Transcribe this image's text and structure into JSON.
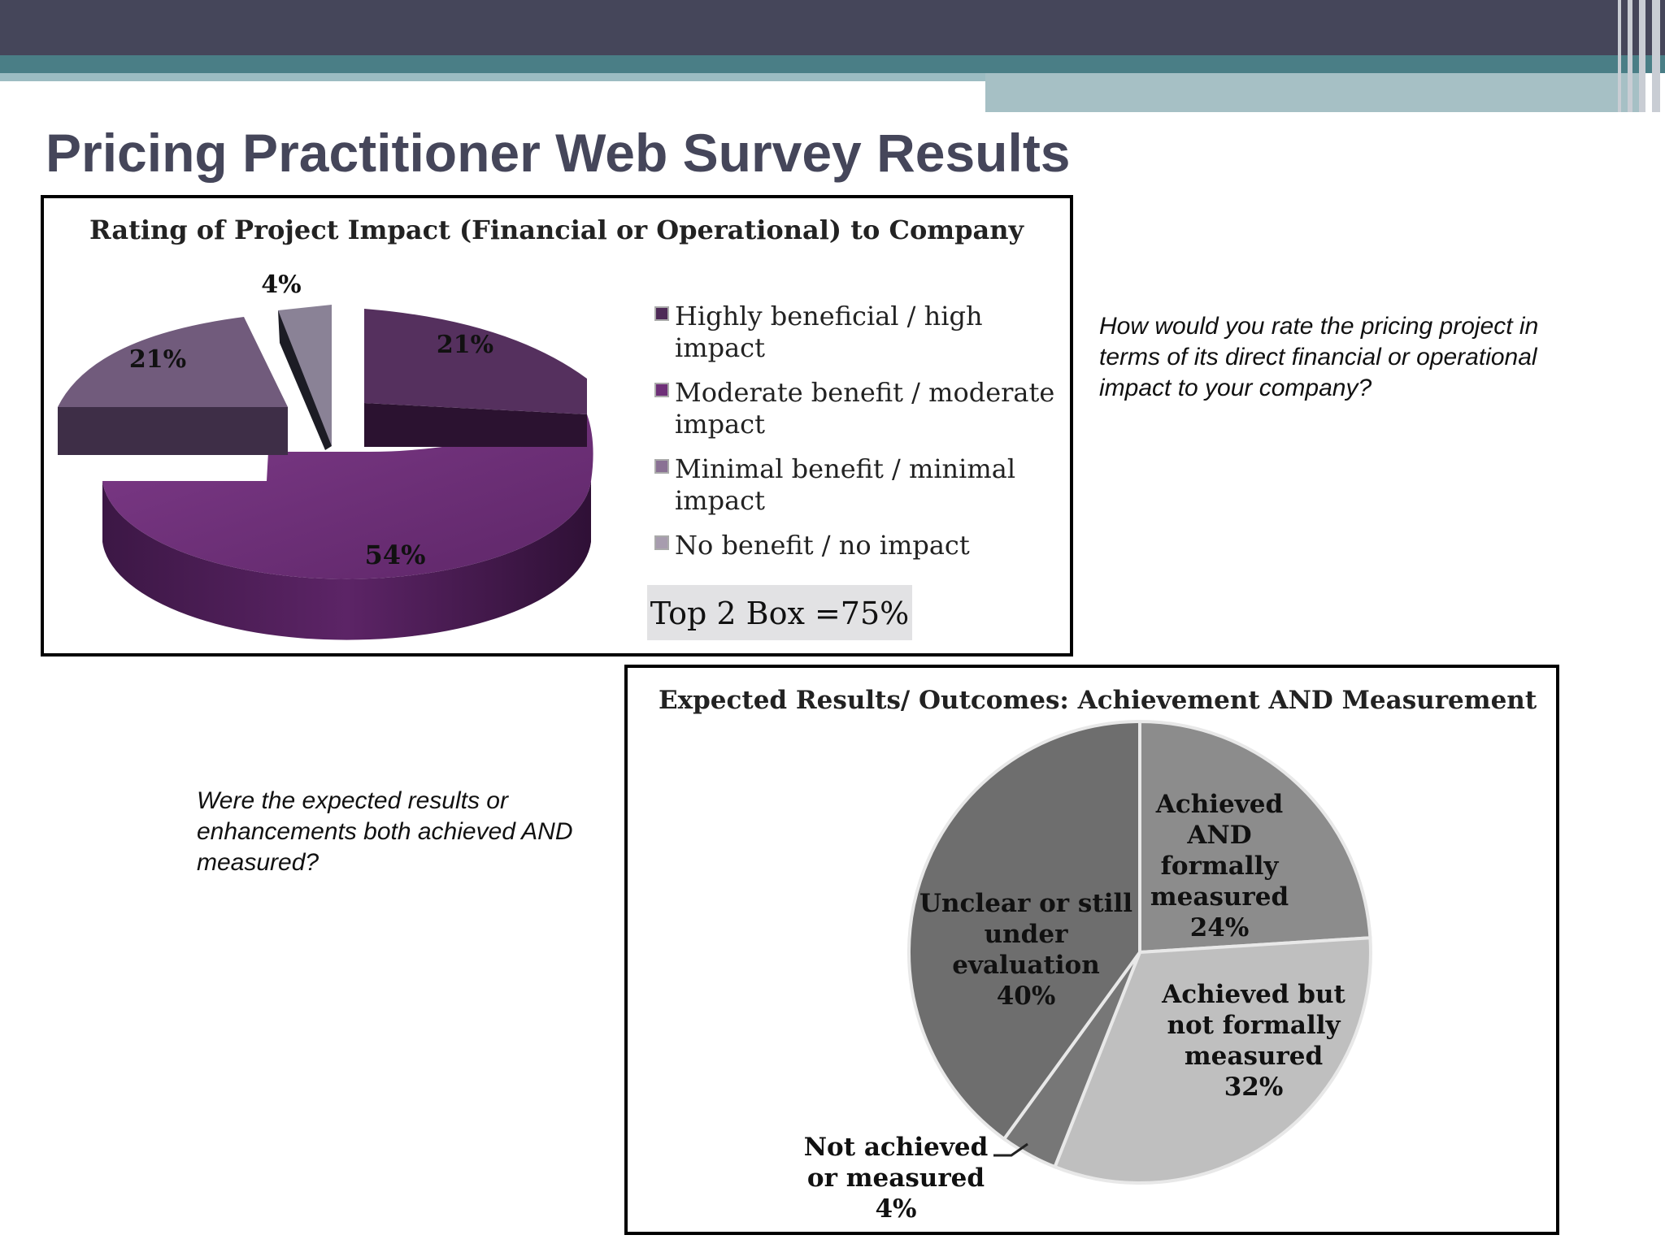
{
  "slide": {
    "title": "Pricing Practitioner Web Survey Results",
    "question_1": "How would you rate the pricing project in terms of its direct financial or operational impact to your company?",
    "question_2": "Were the expected results or enhancements both achieved AND measured?"
  },
  "colors": {
    "header_dark": "#45465a",
    "header_teal": "#4a7e86",
    "header_light": "#9cbcc2"
  },
  "chart_data": [
    {
      "type": "pie",
      "style": "3d-exploded",
      "title": "Rating of Project Impact (Financial or Operational) to Company",
      "unit": "%",
      "slices": [
        {
          "label": "Highly beneficial / high impact",
          "value": 21,
          "display": "21%",
          "color": "#4e2a57"
        },
        {
          "label": "Moderate benefit / moderate impact",
          "value": 54,
          "display": "54%",
          "color": "#6e2f78"
        },
        {
          "label": "Minimal benefit / minimal impact",
          "value": 21,
          "display": "21%",
          "color": "#6a5373"
        },
        {
          "label": "No benefit / no impact",
          "value": 4,
          "display": "4%",
          "color": "#857c90"
        }
      ],
      "legend": {
        "position": "right",
        "entries": [
          [
            "Highly beneficial / high",
            "impact"
          ],
          [
            "Moderate benefit / moderate",
            "impact"
          ],
          [
            "Minimal benefit / minimal",
            "impact"
          ],
          [
            "No benefit / no impact"
          ]
        ]
      },
      "annotation": "Top 2 Box =75%"
    },
    {
      "type": "pie",
      "style": "grayscale",
      "title": "Expected Results/ Outcomes: Achievement AND Measurement",
      "unit": "%",
      "slices": [
        {
          "label": "Achieved AND formally measured",
          "value": 24,
          "display": "24%",
          "color": "#8c8c8c",
          "label_lines": [
            "Achieved",
            "AND",
            "formally",
            "measured",
            "24%"
          ]
        },
        {
          "label": "Achieved but not formally measured",
          "value": 32,
          "display": "32%",
          "color": "#bfbfbf",
          "label_lines": [
            "Achieved but",
            "not formally",
            "measured",
            "32%"
          ]
        },
        {
          "label": "Not achieved or measured",
          "value": 4,
          "display": "4%",
          "color": "#777777",
          "label_lines": [
            "Not achieved",
            "or measured",
            "4%"
          ]
        },
        {
          "label": "Unclear or still under evaluation",
          "value": 40,
          "display": "40%",
          "color": "#6e6e6e",
          "label_lines": [
            "Unclear or still",
            "under",
            "evaluation",
            "40%"
          ]
        }
      ]
    }
  ]
}
